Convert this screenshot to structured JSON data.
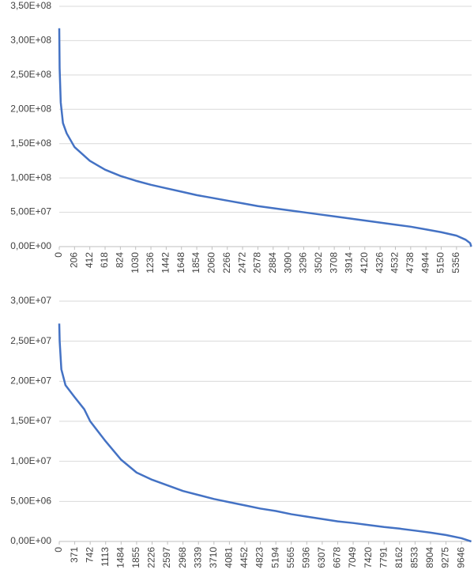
{
  "chart_data": [
    {
      "type": "line",
      "x": [
        0,
        5,
        20,
        50,
        100,
        206,
        412,
        618,
        824,
        1030,
        1236,
        1442,
        1648,
        1854,
        2060,
        2266,
        2472,
        2678,
        2884,
        3090,
        3296,
        3502,
        3708,
        3914,
        4120,
        4326,
        4532,
        4738,
        4944,
        5150,
        5356,
        5480,
        5540,
        5555
      ],
      "series": [
        {
          "color": "#4472c4",
          "values": [
            318000000,
            260000000,
            210000000,
            180000000,
            165000000,
            145000000,
            125000000,
            112000000,
            103000000,
            96000000,
            90000000,
            85000000,
            80000000,
            75000000,
            71000000,
            67000000,
            63000000,
            59000000,
            56000000,
            53000000,
            50000000,
            47000000,
            44000000,
            41000000,
            38000000,
            35000000,
            32000000,
            29000000,
            25000000,
            21000000,
            16000000,
            10000000,
            5000000,
            0
          ]
        }
      ],
      "xlim": [
        0,
        5560
      ],
      "xticks": [
        0,
        206,
        412,
        618,
        824,
        1030,
        1236,
        1442,
        1648,
        1854,
        2060,
        2266,
        2472,
        2678,
        2884,
        3090,
        3296,
        3502,
        3708,
        3914,
        4120,
        4326,
        4532,
        4738,
        4944,
        5150,
        5356
      ],
      "ylim": [
        0,
        350000000
      ],
      "yticks": [
        {
          "value": 0,
          "label": "0,00E+00"
        },
        {
          "value": 50000000,
          "label": "5,00E+07"
        },
        {
          "value": 100000000,
          "label": "1,00E+08"
        },
        {
          "value": 150000000,
          "label": "1,50E+08"
        },
        {
          "value": 200000000,
          "label": "2,00E+08"
        },
        {
          "value": 250000000,
          "label": "2,50E+08"
        },
        {
          "value": 300000000,
          "label": "3,00E+08"
        },
        {
          "value": 350000000,
          "label": "3,50E+08"
        }
      ],
      "grid": true
    },
    {
      "type": "line",
      "x": [
        0,
        10,
        50,
        150,
        371,
        600,
        742,
        1113,
        1484,
        1855,
        2226,
        2597,
        2968,
        3339,
        3710,
        4081,
        4452,
        4823,
        5194,
        5565,
        5936,
        6307,
        6678,
        7049,
        7420,
        7791,
        8162,
        8533,
        8904,
        9275,
        9646,
        9820,
        9880
      ],
      "series": [
        {
          "color": "#4472c4",
          "values": [
            27200000,
            25000000,
            21500000,
            19500000,
            18000000,
            16500000,
            15000000,
            12500000,
            10200000,
            8600000,
            7700000,
            7000000,
            6300000,
            5800000,
            5300000,
            4900000,
            4500000,
            4100000,
            3800000,
            3400000,
            3100000,
            2800000,
            2500000,
            2300000,
            2050000,
            1800000,
            1600000,
            1350000,
            1100000,
            800000,
            400000,
            100000,
            0
          ]
        }
      ],
      "xlim": [
        0,
        9890
      ],
      "xticks": [
        0,
        371,
        742,
        1113,
        1484,
        1855,
        2226,
        2597,
        2968,
        3339,
        3710,
        4081,
        4452,
        4823,
        5194,
        5565,
        5936,
        6307,
        6678,
        7049,
        7420,
        7791,
        8162,
        8533,
        8904,
        9275,
        9646
      ],
      "ylim": [
        0,
        30000000
      ],
      "yticks": [
        {
          "value": 0,
          "label": "0,00E+00"
        },
        {
          "value": 5000000,
          "label": "5,00E+06"
        },
        {
          "value": 10000000,
          "label": "1,00E+07"
        },
        {
          "value": 15000000,
          "label": "1,50E+07"
        },
        {
          "value": 20000000,
          "label": "2,00E+07"
        },
        {
          "value": 25000000,
          "label": "2,50E+07"
        },
        {
          "value": 30000000,
          "label": "3,00E+07"
        }
      ],
      "grid": true
    }
  ]
}
